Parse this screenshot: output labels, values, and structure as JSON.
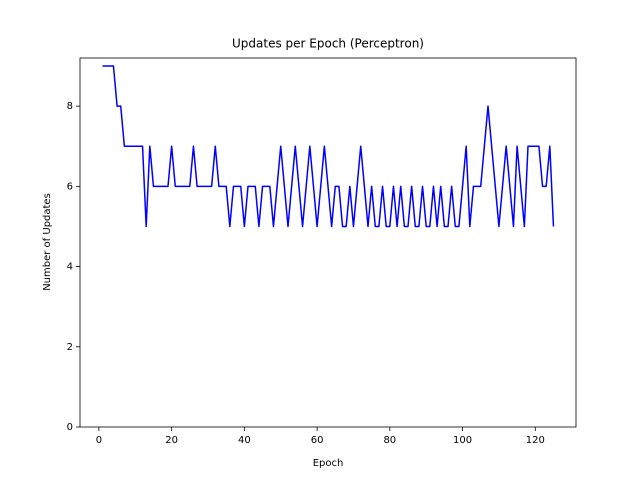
{
  "chart_data": {
    "type": "line",
    "title": "Updates per Epoch (Perceptron)",
    "x_label": "Epoch",
    "y_label": "Number of Updates",
    "x": [
      1,
      2,
      3,
      4,
      5,
      6,
      7,
      8,
      9,
      10,
      11,
      12,
      13,
      14,
      15,
      16,
      17,
      18,
      19,
      20,
      21,
      22,
      23,
      24,
      25,
      26,
      27,
      28,
      29,
      30,
      31,
      32,
      33,
      34,
      35,
      36,
      37,
      38,
      39,
      40,
      41,
      42,
      43,
      44,
      45,
      46,
      47,
      48,
      49,
      50,
      51,
      52,
      53,
      54,
      55,
      56,
      57,
      58,
      59,
      60,
      61,
      62,
      63,
      64,
      65,
      66,
      67,
      68,
      69,
      70,
      71,
      72,
      73,
      74,
      75,
      76,
      77,
      78,
      79,
      80,
      81,
      82,
      83,
      84,
      85,
      86,
      87,
      88,
      89,
      90,
      91,
      92,
      93,
      94,
      95,
      96,
      97,
      98,
      99,
      100,
      101,
      102,
      103,
      104,
      105,
      106,
      107,
      108,
      109,
      110,
      111,
      112,
      113,
      114,
      115,
      116,
      117,
      118,
      119,
      120,
      121,
      122,
      123,
      124,
      125
    ],
    "series": [
      {
        "color": "#0000ff",
        "values": [
          9,
          9,
          9,
          9,
          8,
          8,
          7,
          7,
          7,
          7,
          7,
          7,
          5,
          7,
          6,
          6,
          6,
          6,
          6,
          7,
          6,
          6,
          6,
          6,
          6,
          7,
          6,
          6,
          6,
          6,
          6,
          7,
          6,
          6,
          6,
          5,
          6,
          6,
          6,
          5,
          6,
          6,
          6,
          5,
          6,
          6,
          6,
          5,
          6,
          7,
          6,
          5,
          6,
          7,
          6,
          5,
          6,
          7,
          6,
          5,
          6,
          7,
          6,
          5,
          6,
          6,
          5,
          5,
          6,
          5,
          6,
          7,
          6,
          5,
          6,
          5,
          5,
          6,
          5,
          5,
          6,
          5,
          6,
          5,
          5,
          6,
          5,
          5,
          6,
          5,
          5,
          6,
          5,
          6,
          5,
          5,
          6,
          5,
          5,
          6,
          7,
          5,
          6,
          6,
          6,
          7,
          8,
          7,
          6,
          5,
          6,
          7,
          6,
          5,
          7,
          6,
          5,
          7,
          7,
          7,
          7,
          6,
          6,
          7,
          5
        ]
      }
    ],
    "xlim": [
      -5.2,
      131.2
    ],
    "ylim": [
      0,
      9.2
    ],
    "xticks": [
      0,
      20,
      40,
      60,
      80,
      100,
      120
    ],
    "yticks": [
      0,
      2,
      4,
      6,
      8
    ]
  }
}
